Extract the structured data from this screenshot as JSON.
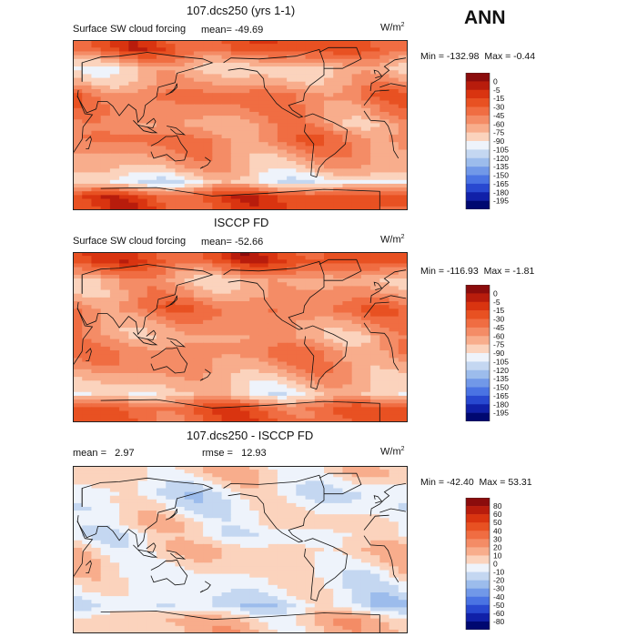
{
  "season": "ANN",
  "unit_label": "W/m",
  "unit_exp": "2",
  "panels": [
    {
      "title": "107.dcs250 (yrs 1-1)",
      "subtitle": "Surface SW cloud forcing",
      "mean_label": "mean=",
      "mean_value": "-49.69",
      "min_label": "Min =",
      "min_value": "-132.98",
      "max_label": "Max =",
      "max_value": "-0.44",
      "scale": "model"
    },
    {
      "title": "ISCCP FD",
      "subtitle": "Surface SW cloud forcing",
      "mean_label": "mean=",
      "mean_value": "-52.66",
      "min_label": "Min =",
      "min_value": "-116.93",
      "max_label": "Max =",
      "max_value": "-1.81",
      "scale": "model"
    },
    {
      "title": "107.dcs250 - ISCCP FD",
      "mean_label": "mean =",
      "mean_value": "2.97",
      "rmse_label": "rmse =",
      "rmse_value": "12.93",
      "min_label": "Min =",
      "min_value": "-42.40",
      "max_label": "Max =",
      "max_value": "53.31",
      "scale": "diff"
    }
  ],
  "chart_data": [
    {
      "type": "heatmap",
      "title": "107.dcs250 (yrs 1-1)",
      "subtitle": "Surface SW cloud forcing",
      "units": "W/m2",
      "mean": -49.69,
      "min": -132.98,
      "max": -0.44,
      "legend_levels": [
        "0",
        "-5",
        "-15",
        "-30",
        "-45",
        "-60",
        "-75",
        "-90",
        "-105",
        "-120",
        "-135",
        "-150",
        "-165",
        "-180",
        "-195"
      ],
      "legend_colors": [
        "#8b0c0c",
        "#b81c0c",
        "#d93410",
        "#e85122",
        "#f06d42",
        "#f48c66",
        "#f8ad8c",
        "#fbd3bd",
        "#eef3fb",
        "#c4d7f1",
        "#9cbcec",
        "#7198e8",
        "#4a73e3",
        "#2848d0",
        "#1020a8",
        "#000870"
      ],
      "latitude_bands": [
        {
          "lat": 80,
          "value": -25
        },
        {
          "lat": 60,
          "value": -80
        },
        {
          "lat": 45,
          "value": -65
        },
        {
          "lat": 30,
          "value": -40
        },
        {
          "lat": 15,
          "value": -50
        },
        {
          "lat": 0,
          "value": -60
        },
        {
          "lat": -15,
          "value": -45
        },
        {
          "lat": -30,
          "value": -55
        },
        {
          "lat": -45,
          "value": -70
        },
        {
          "lat": -60,
          "value": -95
        },
        {
          "lat": -75,
          "value": -20
        }
      ]
    },
    {
      "type": "heatmap",
      "title": "ISCCP FD",
      "subtitle": "Surface SW cloud forcing",
      "units": "W/m2",
      "mean": -52.66,
      "min": -116.93,
      "max": -1.81,
      "legend_levels": [
        "0",
        "-5",
        "-15",
        "-30",
        "-45",
        "-60",
        "-75",
        "-90",
        "-105",
        "-120",
        "-135",
        "-150",
        "-165",
        "-180",
        "-195"
      ],
      "legend_colors": [
        "#8b0c0c",
        "#b81c0c",
        "#d93410",
        "#e85122",
        "#f06d42",
        "#f48c66",
        "#f8ad8c",
        "#fbd3bd",
        "#eef3fb",
        "#c4d7f1",
        "#9cbcec",
        "#7198e8",
        "#4a73e3",
        "#2848d0",
        "#1020a8",
        "#000870"
      ],
      "latitude_bands": [
        {
          "lat": 80,
          "value": -20
        },
        {
          "lat": 60,
          "value": -70
        },
        {
          "lat": 45,
          "value": -60
        },
        {
          "lat": 30,
          "value": -40
        },
        {
          "lat": 15,
          "value": -55
        },
        {
          "lat": 0,
          "value": -65
        },
        {
          "lat": -15,
          "value": -50
        },
        {
          "lat": -30,
          "value": -55
        },
        {
          "lat": -45,
          "value": -70
        },
        {
          "lat": -60,
          "value": -85
        },
        {
          "lat": -75,
          "value": -30
        }
      ]
    },
    {
      "type": "heatmap",
      "title": "107.dcs250 - ISCCP FD",
      "units": "W/m2",
      "mean": 2.97,
      "rmse": 12.93,
      "min": -42.4,
      "max": 53.31,
      "legend_levels": [
        "80",
        "60",
        "50",
        "40",
        "30",
        "20",
        "10",
        "0",
        "-10",
        "-20",
        "-30",
        "-40",
        "-50",
        "-60",
        "-80"
      ],
      "legend_colors": [
        "#8b0c0c",
        "#b81c0c",
        "#d93410",
        "#e85122",
        "#f06d42",
        "#f48c66",
        "#f8ad8c",
        "#fbd3bd",
        "#eef3fb",
        "#c4d7f1",
        "#9cbcec",
        "#7198e8",
        "#4a73e3",
        "#2848d0",
        "#1020a8",
        "#000870"
      ],
      "latitude_bands": [
        {
          "lat": 80,
          "value": 5
        },
        {
          "lat": 60,
          "value": -8
        },
        {
          "lat": 45,
          "value": -5
        },
        {
          "lat": 30,
          "value": 3
        },
        {
          "lat": 15,
          "value": -4
        },
        {
          "lat": 0,
          "value": 6
        },
        {
          "lat": -15,
          "value": 4
        },
        {
          "lat": -30,
          "value": -2
        },
        {
          "lat": -45,
          "value": -6
        },
        {
          "lat": -60,
          "value": -12
        },
        {
          "lat": -75,
          "value": 10
        }
      ]
    }
  ]
}
